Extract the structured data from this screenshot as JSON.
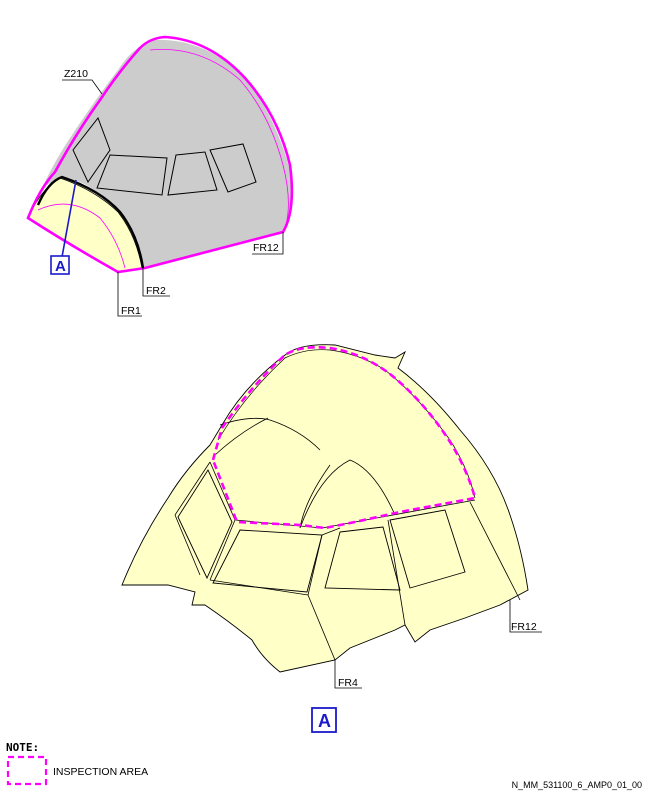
{
  "colors": {
    "skin_gray": "#cccccc",
    "panel_yellow": "#ffffc8",
    "inspection_magenta": "#ff00ff",
    "view_marker_blue": "#1a1acc"
  },
  "top_view": {
    "zone_label": "Z210",
    "frame_labels": {
      "fr1": "FR1",
      "fr2": "FR2",
      "fr12": "FR12"
    },
    "view_marker": "A"
  },
  "detail_view": {
    "frame_labels": {
      "fr4": "FR4",
      "fr12": "FR12"
    },
    "view_title": "A"
  },
  "legend": {
    "note_title": "NOTE:",
    "inspection_area_label": "INSPECTION AREA"
  },
  "reference_code": "N_MM_531100_6_AMP0_01_00"
}
